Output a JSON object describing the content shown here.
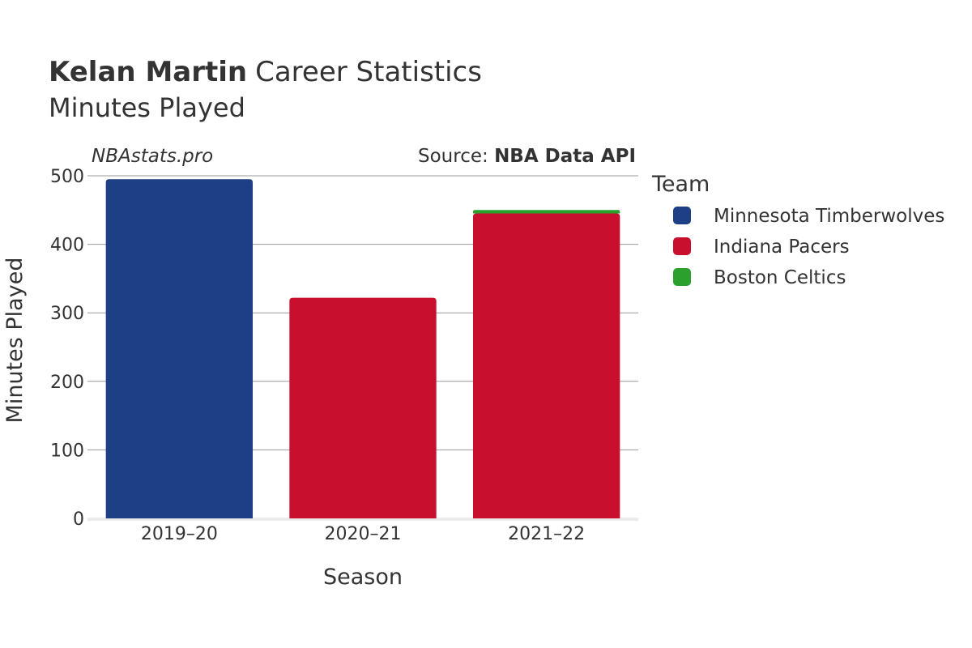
{
  "title": {
    "player": "Kelan Martin",
    "rest": "Career Statistics",
    "subtitle": "Minutes Played"
  },
  "watermark": "NBAstats.pro",
  "source": {
    "prefix": "Source: ",
    "name": "NBA Data API"
  },
  "chart_data": {
    "type": "bar",
    "stacked": true,
    "categories": [
      "2019–20",
      "2020–21",
      "2021–22"
    ],
    "series": [
      {
        "name": "Minnesota Timberwolves",
        "color": "#1c3f85",
        "values": [
          495,
          0,
          0
        ]
      },
      {
        "name": "Indiana Pacers",
        "color": "#c8102e",
        "values": [
          0,
          322,
          445
        ]
      },
      {
        "name": "Boston Celtics",
        "color": "#2ca02c",
        "values": [
          0,
          0,
          5
        ]
      }
    ],
    "xlabel": "Season",
    "ylabel": "Minutes Played",
    "ylim": [
      0,
      500
    ],
    "yticks": [
      0,
      100,
      200,
      300,
      400,
      500
    ],
    "grid": true,
    "legend": {
      "title": "Team",
      "placement": "right"
    }
  }
}
